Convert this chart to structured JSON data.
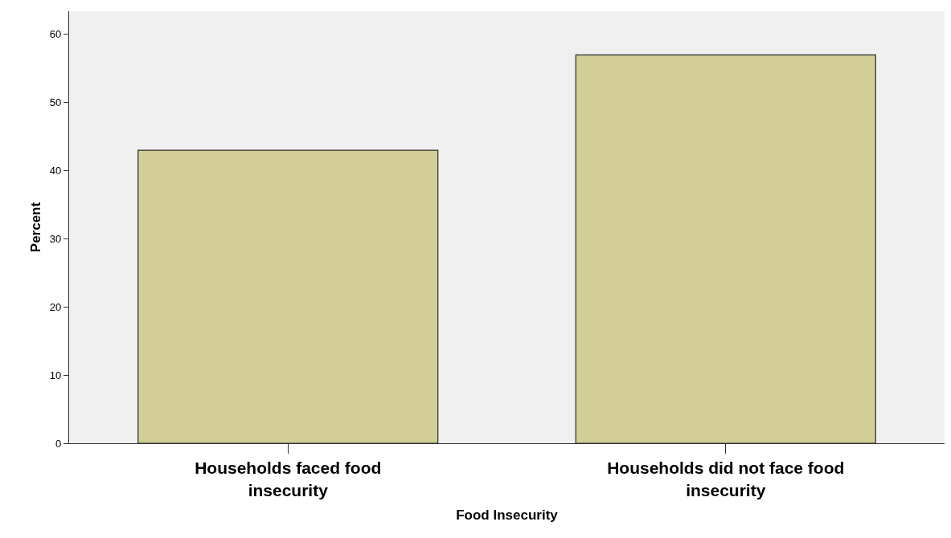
{
  "chart_data": {
    "type": "bar",
    "categories": [
      "Households faced food insecurity",
      "Households did not face food insecurity"
    ],
    "values": [
      43,
      57
    ],
    "color": "#d3cd98",
    "xlabel": "Food Insecurity",
    "ylabel": "Percent",
    "ylim": [
      0,
      63.4
    ],
    "yticks": [
      0,
      10,
      20,
      30,
      40,
      50,
      60
    ],
    "grid": false
  }
}
